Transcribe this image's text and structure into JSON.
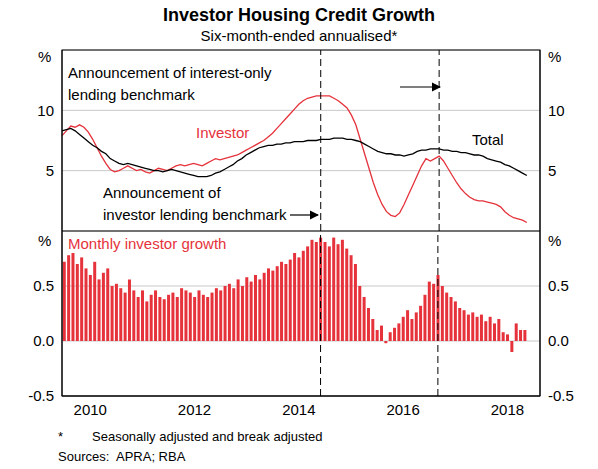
{
  "chart_data": [
    {
      "type": "line",
      "title": "Investor Housing Credit Growth",
      "subtitle": "Six-month-ended annualised*",
      "ylabel": "%",
      "categories": [
        null,
        null,
        null,
        null,
        null,
        null,
        "2010",
        null,
        null,
        null,
        null,
        null,
        null,
        null,
        null,
        null,
        null,
        null,
        null,
        null,
        null,
        null,
        null,
        null,
        null,
        null,
        null,
        null,
        null,
        null,
        "2012",
        null,
        null,
        null,
        null,
        null,
        null,
        null,
        null,
        null,
        null,
        null,
        null,
        null,
        null,
        null,
        null,
        null,
        null,
        null,
        null,
        null,
        null,
        null,
        "2014",
        null,
        null,
        null,
        null,
        null,
        null,
        null,
        null,
        null,
        null,
        null,
        null,
        null,
        null,
        null,
        null,
        null,
        null,
        null,
        null,
        null,
        null,
        null,
        "2016",
        null,
        null,
        null,
        null,
        null,
        null,
        null,
        null,
        null,
        null,
        null,
        null,
        null,
        null,
        null,
        null,
        null,
        null,
        null,
        null,
        null,
        null,
        null,
        "2018",
        null,
        null,
        null,
        null,
        null,
        null,
        null
      ],
      "series": [
        {
          "name": "Investor",
          "color": "#e5323b",
          "values": [
            7.9,
            8.3,
            8.7,
            8.6,
            8.8,
            8.6,
            8.2,
            7.6,
            6.9,
            6.2,
            5.6,
            5.1,
            4.9,
            5.0,
            5.2,
            5.4,
            5.2,
            5.0,
            5.1,
            4.9,
            4.8,
            5.0,
            5.2,
            5.1,
            5.0,
            5.2,
            5.4,
            5.5,
            5.4,
            5.5,
            5.6,
            5.5,
            5.4,
            5.6,
            5.8,
            6.0,
            5.9,
            6.0,
            6.1,
            6.2,
            6.3,
            6.5,
            6.7,
            6.9,
            7.1,
            7.3,
            7.5,
            7.8,
            8.1,
            8.5,
            8.9,
            9.3,
            9.7,
            10.1,
            10.5,
            10.8,
            11.0,
            11.1,
            11.2,
            11.2,
            11.2,
            11.2,
            11.0,
            10.8,
            10.5,
            10.2,
            9.6,
            8.8,
            7.6,
            6.4,
            5.2,
            4.0,
            3.0,
            2.2,
            1.6,
            1.3,
            1.2,
            1.5,
            2.2,
            3.0,
            3.8,
            4.6,
            5.4,
            6.0,
            5.8,
            6.0,
            6.2,
            5.8,
            5.2,
            4.6,
            4.0,
            3.5,
            3.1,
            2.8,
            2.6,
            2.5,
            2.5,
            2.4,
            2.3,
            2.2,
            2.0,
            1.6,
            1.3,
            1.1,
            1.0,
            0.9,
            0.7,
            null,
            null,
            null
          ]
        },
        {
          "name": "Total",
          "color": "#000000",
          "values": [
            8.3,
            8.4,
            8.5,
            8.3,
            8.0,
            7.7,
            7.4,
            7.1,
            6.9,
            6.6,
            6.4,
            6.0,
            5.8,
            5.6,
            5.5,
            5.6,
            5.5,
            5.4,
            5.3,
            5.2,
            5.1,
            5.0,
            5.0,
            4.9,
            5.0,
            5.1,
            5.0,
            4.9,
            4.8,
            4.7,
            4.6,
            4.5,
            4.5,
            4.5,
            4.6,
            4.8,
            4.9,
            5.1,
            5.3,
            5.5,
            5.8,
            6.0,
            6.3,
            6.5,
            6.7,
            6.9,
            7.0,
            7.1,
            7.1,
            7.2,
            7.2,
            7.3,
            7.3,
            7.4,
            7.4,
            7.4,
            7.5,
            7.5,
            7.5,
            7.6,
            7.6,
            7.6,
            7.7,
            7.7,
            7.7,
            7.6,
            7.6,
            7.5,
            7.4,
            7.2,
            7.0,
            6.8,
            6.6,
            6.5,
            6.4,
            6.4,
            6.3,
            6.3,
            6.2,
            6.3,
            6.4,
            6.6,
            6.7,
            6.7,
            6.8,
            6.8,
            6.8,
            6.7,
            6.7,
            6.6,
            6.6,
            6.5,
            6.5,
            6.4,
            6.3,
            6.3,
            6.2,
            6.0,
            5.9,
            5.8,
            5.7,
            5.5,
            5.4,
            5.2,
            5.0,
            4.8,
            4.6,
            null,
            null,
            null
          ]
        }
      ],
      "ylim": [
        0,
        15
      ],
      "yticks": [
        5,
        10
      ],
      "grid": true,
      "tick_labels": "y",
      "annotations": [
        {
          "text": [
            "Announcement of interest-only",
            "lending benchmark"
          ],
          "x_index": 86
        },
        {
          "text": [
            "Announcement of",
            "investor lending benchmark"
          ],
          "x_index": 59
        }
      ]
    },
    {
      "type": "bar",
      "ylabel": "%",
      "categories": [
        null,
        null,
        null,
        null,
        null,
        null,
        "2010",
        null,
        null,
        null,
        null,
        null,
        null,
        null,
        null,
        null,
        null,
        null,
        null,
        null,
        null,
        null,
        null,
        null,
        null,
        null,
        null,
        null,
        null,
        null,
        "2012",
        null,
        null,
        null,
        null,
        null,
        null,
        null,
        null,
        null,
        null,
        null,
        null,
        null,
        null,
        null,
        null,
        null,
        null,
        null,
        null,
        null,
        null,
        null,
        "2014",
        null,
        null,
        null,
        null,
        null,
        null,
        null,
        null,
        null,
        null,
        null,
        null,
        null,
        null,
        null,
        null,
        null,
        null,
        null,
        null,
        null,
        null,
        null,
        "2016",
        null,
        null,
        null,
        null,
        null,
        null,
        null,
        null,
        null,
        null,
        null,
        null,
        null,
        null,
        null,
        null,
        null,
        null,
        null,
        null,
        null,
        null,
        null,
        "2018",
        null,
        null,
        null,
        null,
        null,
        null,
        null
      ],
      "series": [
        {
          "name": "Monthly investor growth",
          "color": "#e5323b",
          "values": [
            0.72,
            0.78,
            0.8,
            0.7,
            0.76,
            0.66,
            0.6,
            0.72,
            0.56,
            0.62,
            0.66,
            0.5,
            0.52,
            0.48,
            0.44,
            0.56,
            0.46,
            0.4,
            0.46,
            0.36,
            0.42,
            0.46,
            0.4,
            0.38,
            0.42,
            0.44,
            0.4,
            0.48,
            0.46,
            0.44,
            0.4,
            0.46,
            0.42,
            0.4,
            0.44,
            0.48,
            0.46,
            0.5,
            0.52,
            0.48,
            0.56,
            0.5,
            0.58,
            0.54,
            0.6,
            0.56,
            0.62,
            0.66,
            0.64,
            0.68,
            0.72,
            0.7,
            0.74,
            0.8,
            0.76,
            0.82,
            0.86,
            0.92,
            0.9,
            0.94,
            0.9,
            0.86,
            0.94,
            0.88,
            0.92,
            0.84,
            0.78,
            0.7,
            0.5,
            0.4,
            0.3,
            0.2,
            0.1,
            0.14,
            -0.02,
            0.08,
            0.12,
            0.16,
            0.22,
            0.28,
            0.2,
            0.26,
            0.32,
            0.42,
            0.54,
            0.52,
            0.6,
            0.5,
            0.44,
            0.4,
            0.36,
            0.3,
            0.28,
            0.24,
            0.26,
            0.22,
            0.24,
            0.18,
            0.22,
            0.16,
            0.2,
            0.08,
            0.06,
            -0.1,
            0.16,
            0.1,
            0.1,
            null,
            null,
            null
          ]
        }
      ],
      "ylim": [
        -0.5,
        1
      ],
      "yticks": [
        -0.5,
        {
          "value": 0,
          "label": "0.0"
        },
        0.5
      ],
      "grid": true,
      "notes": [
        [
          "*",
          "Seasonally adjusted and break adjusted"
        ],
        [
          "Sources:",
          "APRA; RBA"
        ]
      ]
    }
  ]
}
